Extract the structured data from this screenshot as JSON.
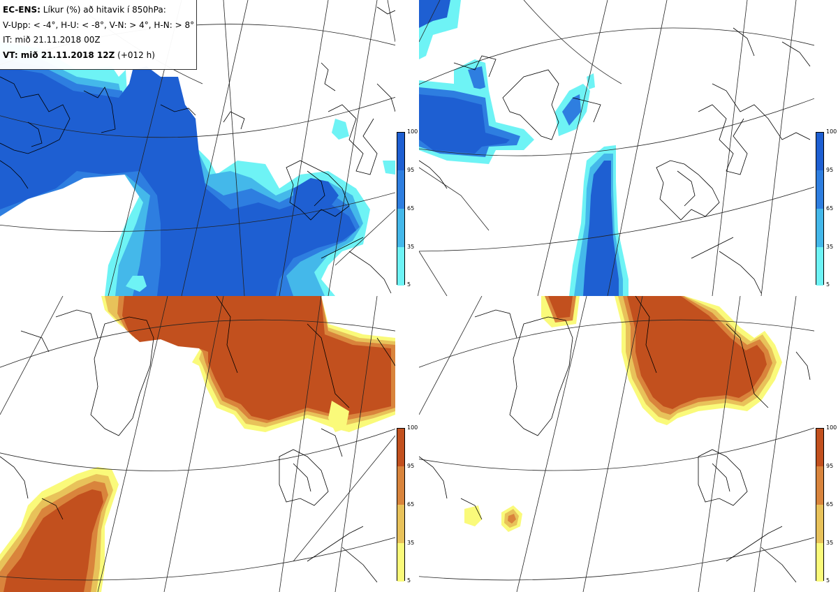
{
  "legend": {
    "line1_bold": "EC-ENS:",
    "line1_rest": " Líkur (%) að hitavik í 850hPa:",
    "line2": "V-Upp: < -4°, H-U: < -8°, V-N: > 4°, H-N: > 8°",
    "line3": "IT: mið 21.11.2018 00Z",
    "line4_bold": "VT: mið 21.11.2018 12Z",
    "line4_rest": " (+012 h)"
  },
  "colorbars": {
    "blue": {
      "ticks": [
        "100",
        "95",
        "65",
        "35",
        "5"
      ],
      "colors": [
        "#1e5fd2",
        "#2e7ee0",
        "#44b8ea",
        "#6ef3f5"
      ]
    },
    "orange": {
      "ticks": [
        "100",
        "95",
        "65",
        "35",
        "5"
      ],
      "colors": [
        "#c2501e",
        "#d9843c",
        "#e8c25a",
        "#fafa7a"
      ]
    }
  },
  "panels": [
    {
      "id": "v-upp",
      "fill": "blue"
    },
    {
      "id": "h-u",
      "fill": "blue"
    },
    {
      "id": "v-n",
      "fill": "orange"
    },
    {
      "id": "h-n",
      "fill": "orange"
    }
  ]
}
